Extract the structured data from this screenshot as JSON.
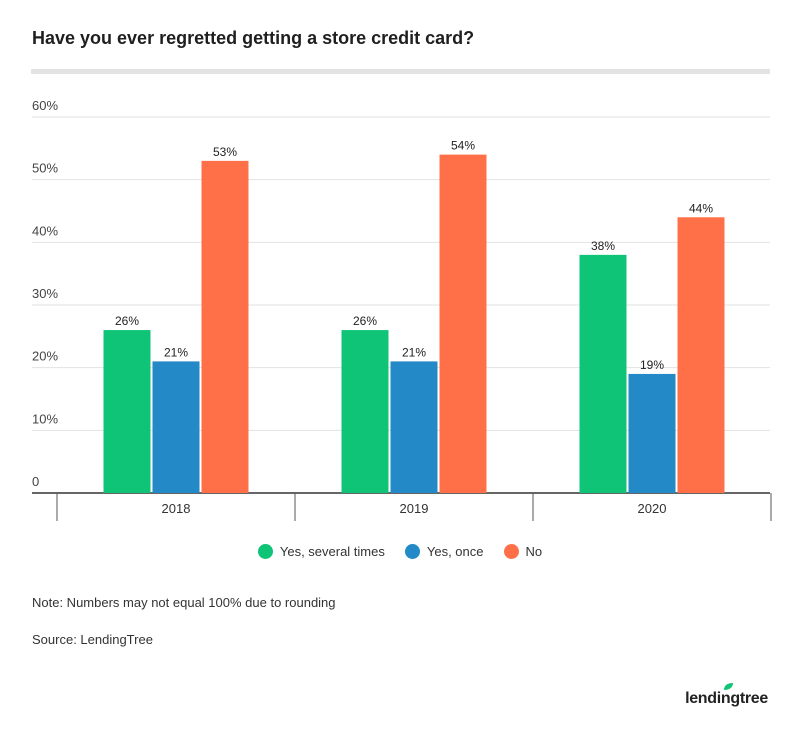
{
  "title": "Have you ever regretted getting a store credit card?",
  "note": "Note: Numbers may not equal 100% due to rounding",
  "source": "Source: LendingTree",
  "logo_text": "lendingtree",
  "colors": {
    "yes_several": "#10c477",
    "yes_once": "#2389c7",
    "no": "#ff7048",
    "grid": "#e2e2e2",
    "axis": "#555555"
  },
  "chart_data": {
    "type": "bar",
    "categories": [
      "2018",
      "2019",
      "2020"
    ],
    "series": [
      {
        "name": "Yes, several times",
        "values": [
          26,
          26,
          38
        ],
        "color": "#10c477"
      },
      {
        "name": "Yes, once",
        "values": [
          21,
          21,
          19
        ],
        "color": "#2389c7"
      },
      {
        "name": "No",
        "values": [
          53,
          54,
          44
        ],
        "color": "#ff7048"
      }
    ],
    "yticks": [
      "0",
      "10%",
      "20%",
      "30%",
      "40%",
      "50%",
      "60%"
    ],
    "ylim": [
      0,
      60
    ],
    "value_suffix": "%",
    "grid": true,
    "legend_position": "bottom"
  }
}
